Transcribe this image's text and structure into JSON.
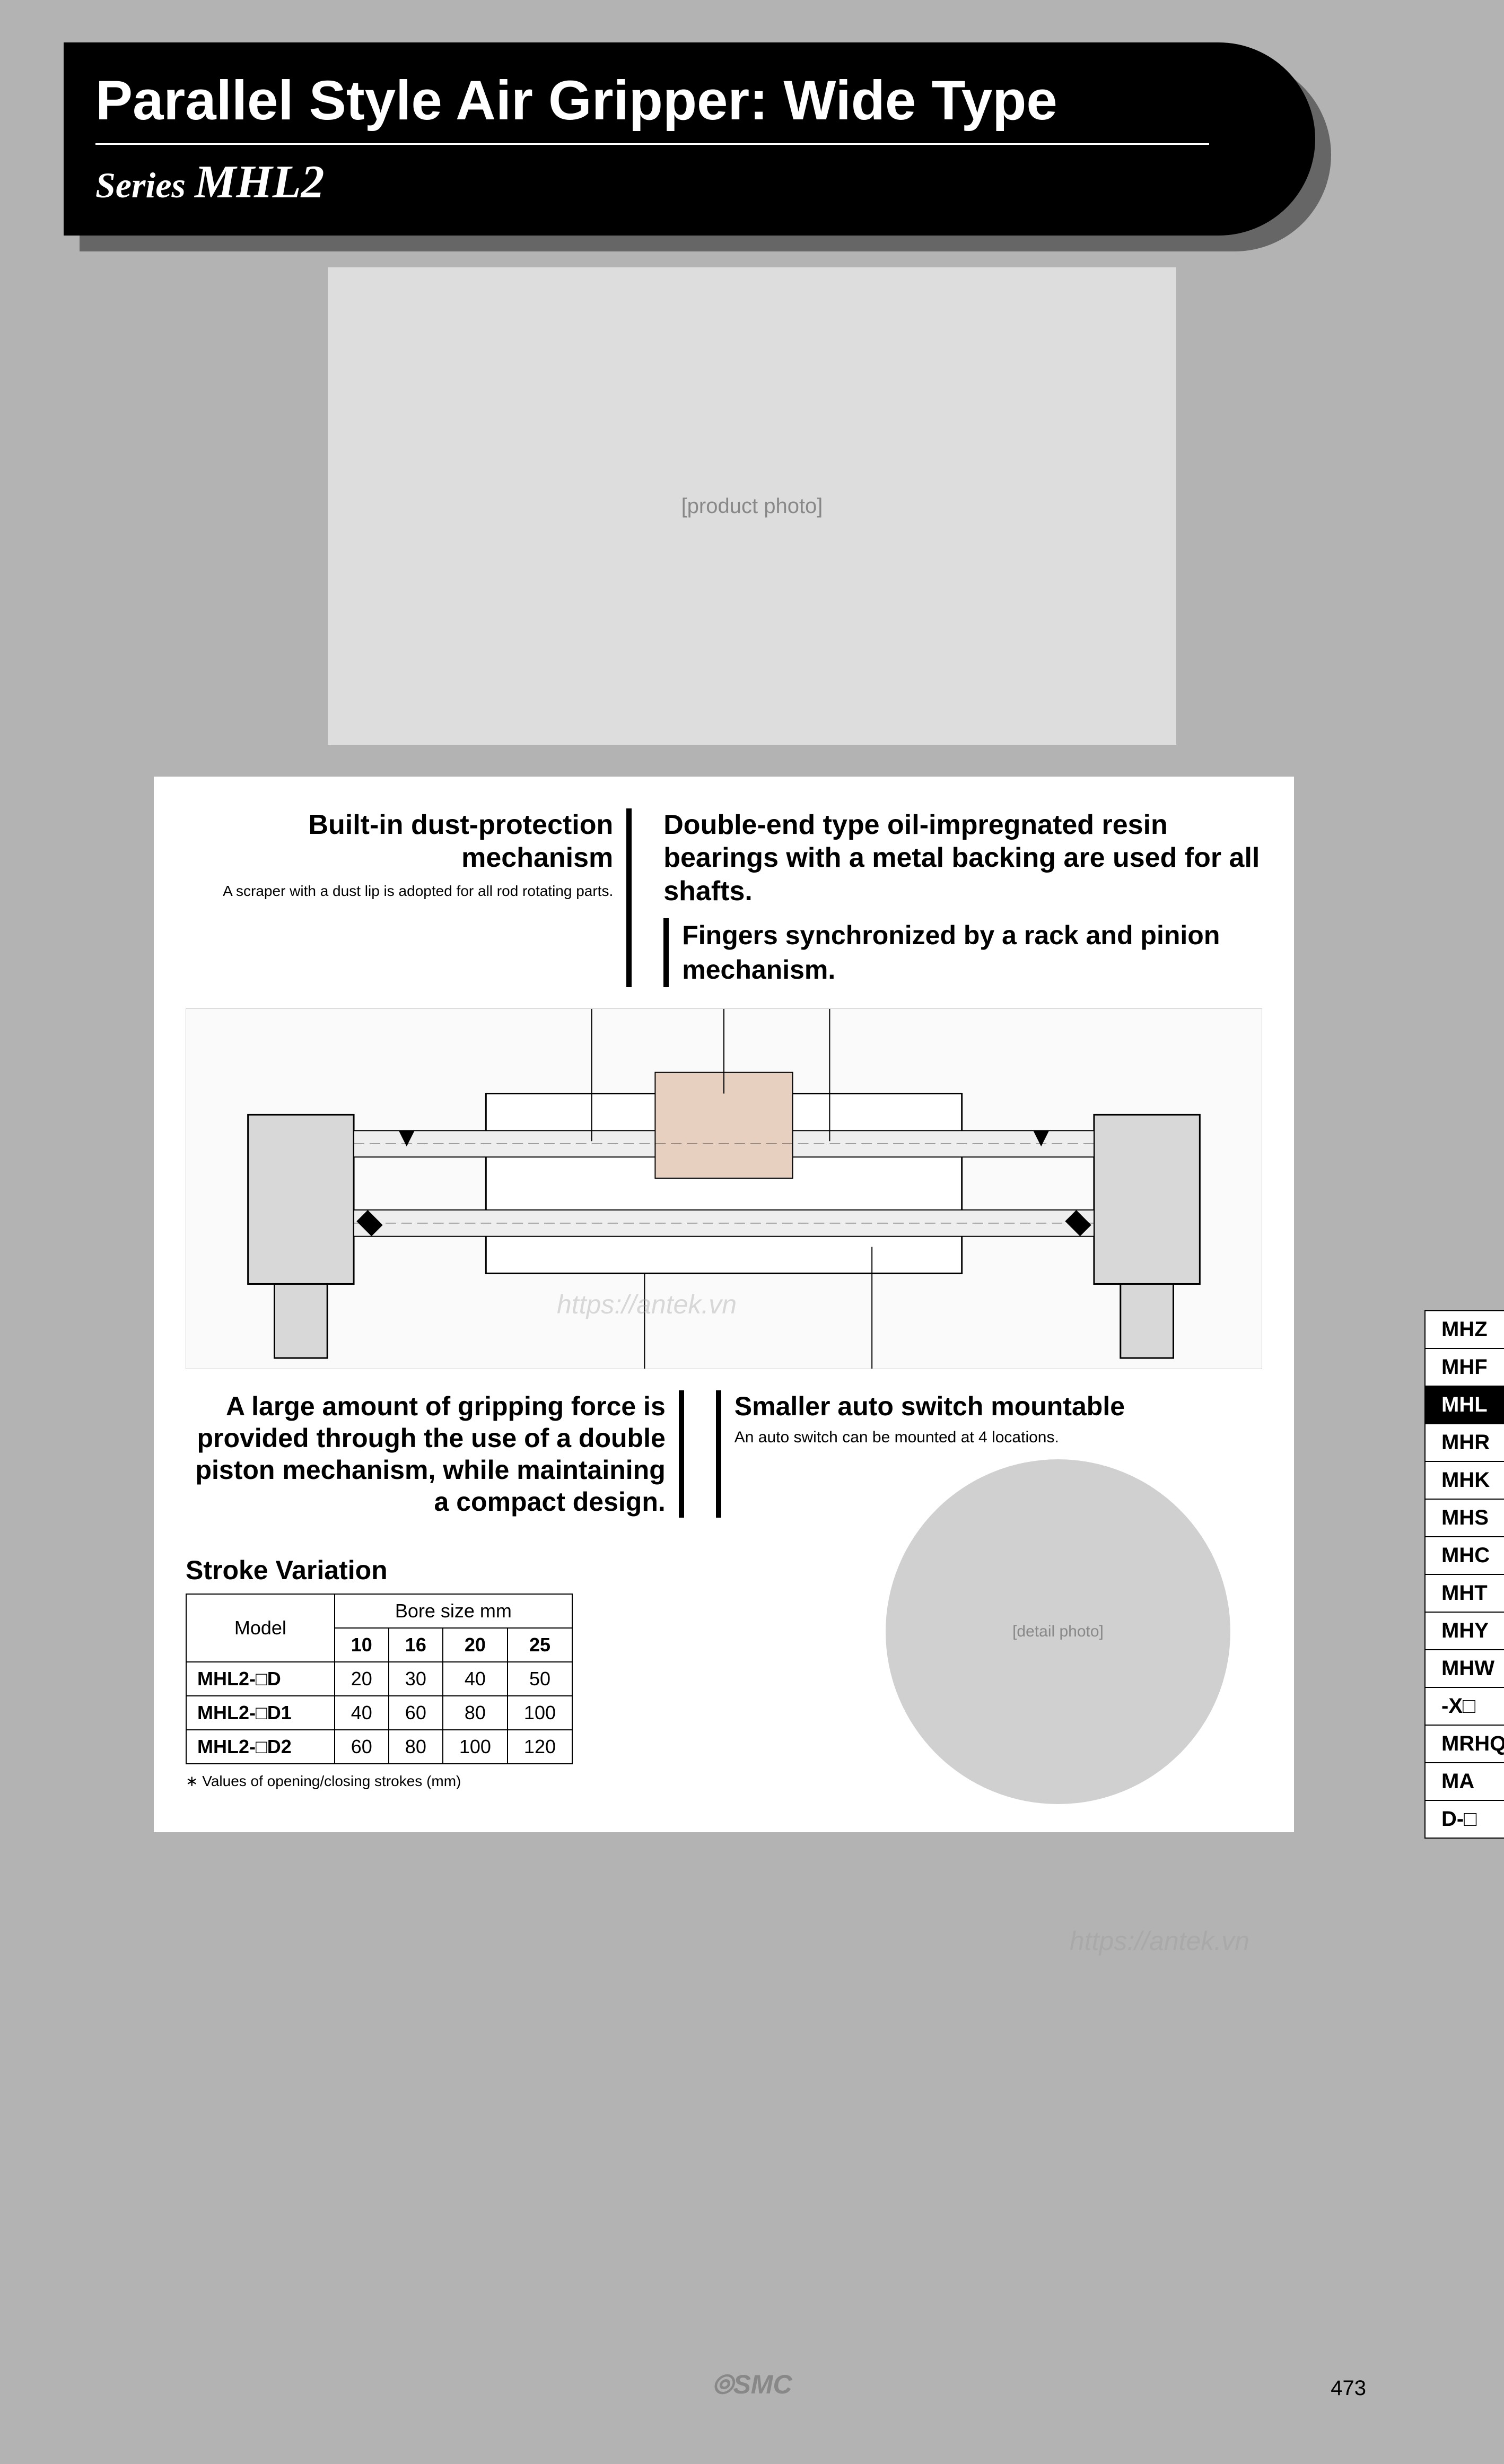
{
  "header": {
    "title": "Parallel Style Air Gripper: Wide Type",
    "series_prefix": "Series",
    "series_model": "MHL2"
  },
  "features": {
    "dust": {
      "title": "Built-in dust-protection mechanism",
      "desc": "A scraper with a dust lip is adopted for all rod rotating parts."
    },
    "bearings": {
      "title": "Double-end type oil-impregnated resin bearings with a metal backing are used for all shafts."
    },
    "fingers": {
      "title": "Fingers synchronized by a rack and pinion mechanism."
    },
    "force": {
      "title": "A large amount of gripping force is provided through the use of a double piston mechanism, while maintaining a compact design."
    },
    "autoswitch": {
      "title": "Smaller auto switch mountable",
      "desc": "An auto switch can be mounted at 4 locations."
    }
  },
  "stroke": {
    "title": "Stroke Variation",
    "model_header": "Model",
    "bore_header": "Bore size mm",
    "columns": [
      "10",
      "16",
      "20",
      "25"
    ],
    "rows": [
      {
        "model": "MHL2-□D",
        "values": [
          "20",
          "30",
          "40",
          "50"
        ]
      },
      {
        "model": "MHL2-□D1",
        "values": [
          "40",
          "60",
          "80",
          "100"
        ]
      },
      {
        "model": "MHL2-□D2",
        "values": [
          "60",
          "80",
          "100",
          "120"
        ]
      }
    ],
    "footnote": "∗ Values of opening/closing strokes (mm)"
  },
  "tabs": [
    "MHZ",
    "MHF",
    "MHL",
    "MHR",
    "MHK",
    "MHS",
    "MHC",
    "MHT",
    "MHY",
    "MHW",
    "-X□",
    "MRHQ",
    "MA",
    "D-□"
  ],
  "active_tab": "MHL",
  "page_number": "473",
  "logo_text": "SMC",
  "photo_placeholder": "[product photo]",
  "circle_placeholder": "[detail photo]",
  "watermark": "https://antek.vn"
}
